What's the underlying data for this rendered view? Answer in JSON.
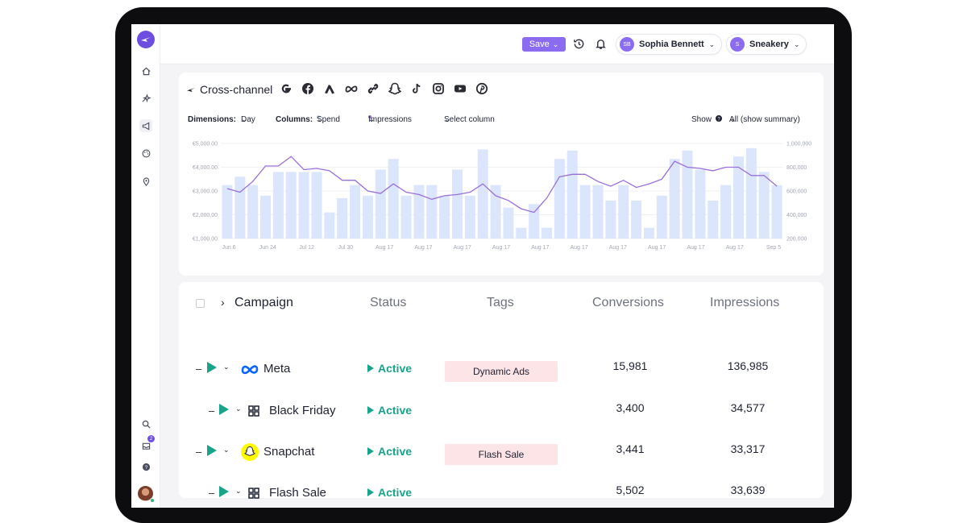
{
  "header": {
    "save_label": "Save",
    "user_initials": "SB",
    "user_name": "Sophia Bennett",
    "workspace_initial": "S",
    "workspace_name": "Sneakery"
  },
  "chart_header": {
    "title": "Cross-channel",
    "channels": [
      "google-icon",
      "facebook-icon",
      "adwords-icon",
      "meta-icon",
      "link-icon",
      "snapchat-icon",
      "tiktok-icon",
      "instagram-icon",
      "youtube-icon",
      "pinterest-icon"
    ],
    "dimensions_label": "Dimensions:",
    "dimension_value": "Day",
    "columns_label": "Columns:",
    "column_1": "Spend",
    "column_2": "Impressions",
    "select_column": "Select column",
    "show_label": "Show",
    "show_value": "All (show summary)"
  },
  "chart_data": {
    "type": "bar",
    "title": "",
    "x_tick_labels": [
      "Jun 6",
      "Jun 24",
      "Jul 12",
      "Jul 30",
      "Aug 17",
      "Aug 17",
      "Aug 17",
      "Aug 17",
      "Aug 17",
      "Aug 17",
      "Aug 17",
      "Aug 17",
      "Aug 17",
      "Aug 17",
      "Sep 5"
    ],
    "y_left_ticks": [
      "€1,000.00",
      "€2,000.00",
      "€3,000.00",
      "€4,000.00",
      "€5,000.00"
    ],
    "y_right_ticks": [
      "200,000",
      "400,000",
      "600,000",
      "800,000",
      "1,000,000"
    ],
    "y_left_range": [
      1000,
      5000
    ],
    "y_right_range": [
      200000,
      1000000
    ],
    "series": [
      {
        "name": "Spend",
        "type": "bar",
        "axis": "left",
        "values": [
          3250,
          3600,
          3250,
          2800,
          3800,
          3800,
          3800,
          3800,
          2100,
          2700,
          3250,
          2800,
          3900,
          4350,
          2800,
          3250,
          3250,
          2800,
          3900,
          2800,
          4750,
          3250,
          2300,
          1450,
          2450,
          1450,
          4350,
          4700,
          3250,
          3250,
          2600,
          3250,
          2600,
          1450,
          2800,
          4350,
          4700,
          3900,
          2600,
          3250,
          4450,
          4800,
          3800,
          3250
        ]
      },
      {
        "name": "Impressions",
        "type": "line",
        "axis": "right",
        "values": [
          620000,
          590000,
          680000,
          810000,
          810000,
          890000,
          780000,
          790000,
          770000,
          690000,
          690000,
          600000,
          580000,
          660000,
          590000,
          570000,
          530000,
          560000,
          570000,
          590000,
          660000,
          560000,
          520000,
          450000,
          420000,
          540000,
          720000,
          740000,
          740000,
          680000,
          640000,
          690000,
          630000,
          660000,
          700000,
          850000,
          800000,
          790000,
          770000,
          800000,
          800000,
          730000,
          730000,
          640000
        ]
      }
    ],
    "colors": {
      "bar": "#dbe6fd",
      "line": "#9b6fdb"
    },
    "grid": true
  },
  "table": {
    "headers": {
      "campaign": "Campaign",
      "status": "Status",
      "tags": "Tags",
      "conversions": "Conversions",
      "impressions": "Impressions"
    },
    "rows": [
      {
        "name": "Meta",
        "icon": "meta-icon",
        "status": "Active",
        "tag": "Dynamic Ads",
        "conversions": "15,981",
        "impressions": "136,985"
      },
      {
        "name": "Black Friday",
        "icon": "grid-icon",
        "status": "Active",
        "tag": "",
        "conversions": "3,400",
        "impressions": "34,577"
      },
      {
        "name": "Snapchat",
        "icon": "snapchat-icon",
        "status": "Active",
        "tag": "Flash Sale",
        "conversions": "3,441",
        "impressions": "33,317"
      },
      {
        "name": "Flash Sale",
        "icon": "grid-icon",
        "status": "Active",
        "tag": "",
        "conversions": "5,502",
        "impressions": "33,639"
      }
    ]
  },
  "sidebar": {
    "items": [
      "home-icon",
      "sparkle-icon",
      "megaphone-icon",
      "palette-icon",
      "location-pin-icon"
    ],
    "bottom_items": [
      "search-icon",
      "inbox-icon",
      "help-icon"
    ],
    "inbox_badge": "2"
  }
}
